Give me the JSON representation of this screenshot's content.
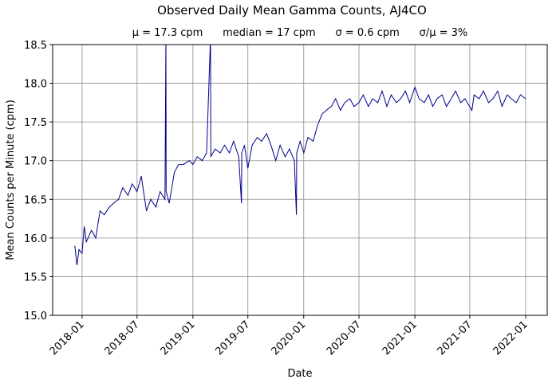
{
  "chart_data": {
    "type": "line",
    "title": "Observed Daily Mean Gamma Counts, AJ4CO",
    "subtitle": "μ = 17.3 cpm      median = 17 cpm      σ = 0.6 cpm      σ/μ = 3%",
    "xlabel": "Date",
    "ylabel": "Mean Counts per Minute (cpm)",
    "xlim": [
      "2017-09-26",
      "2022-03-13"
    ],
    "ylim": [
      15.0,
      18.5
    ],
    "grid": true,
    "line_color": "#00008b",
    "x_ticks": [
      {
        "date": "2018-01-01",
        "label": "2018-01"
      },
      {
        "date": "2018-07-01",
        "label": "2018-07"
      },
      {
        "date": "2019-01-01",
        "label": "2019-01"
      },
      {
        "date": "2019-07-01",
        "label": "2019-07"
      },
      {
        "date": "2020-01-01",
        "label": "2020-01"
      },
      {
        "date": "2020-07-01",
        "label": "2020-07"
      },
      {
        "date": "2021-01-01",
        "label": "2021-01"
      },
      {
        "date": "2021-07-01",
        "label": "2021-07"
      },
      {
        "date": "2022-01-01",
        "label": "2022-01"
      }
    ],
    "y_ticks": [
      {
        "value": 15.0,
        "label": "15.0"
      },
      {
        "value": 15.5,
        "label": "15.5"
      },
      {
        "value": 16.0,
        "label": "16.0"
      },
      {
        "value": 16.5,
        "label": "16.5"
      },
      {
        "value": 17.0,
        "label": "17.0"
      },
      {
        "value": 17.5,
        "label": "17.5"
      },
      {
        "value": 18.0,
        "label": "18.0"
      },
      {
        "value": 18.5,
        "label": "18.5"
      }
    ],
    "series": [
      {
        "points": [
          [
            "2017-12-08",
            15.9
          ],
          [
            "2017-12-15",
            15.65
          ],
          [
            "2017-12-22",
            15.85
          ],
          [
            "2018-01-01",
            15.8
          ],
          [
            "2018-01-08",
            16.15
          ],
          [
            "2018-01-15",
            15.95
          ],
          [
            "2018-02-01",
            16.1
          ],
          [
            "2018-02-15",
            16.0
          ],
          [
            "2018-03-01",
            16.35
          ],
          [
            "2018-03-15",
            16.3
          ],
          [
            "2018-04-01",
            16.4
          ],
          [
            "2018-04-15",
            16.45
          ],
          [
            "2018-05-01",
            16.5
          ],
          [
            "2018-05-15",
            16.65
          ],
          [
            "2018-06-01",
            16.55
          ],
          [
            "2018-06-15",
            16.7
          ],
          [
            "2018-07-01",
            16.6
          ],
          [
            "2018-07-15",
            16.8
          ],
          [
            "2018-08-01",
            16.35
          ],
          [
            "2018-08-15",
            16.5
          ],
          [
            "2018-09-01",
            16.4
          ],
          [
            "2018-09-15",
            16.6
          ],
          [
            "2018-10-01",
            16.5
          ],
          [
            "2018-10-04",
            18.6
          ],
          [
            "2018-10-05",
            16.6
          ],
          [
            "2018-10-15",
            16.45
          ],
          [
            "2018-11-01",
            16.85
          ],
          [
            "2018-11-15",
            16.95
          ],
          [
            "2018-12-01",
            16.95
          ],
          [
            "2018-12-20",
            17.0
          ],
          [
            "2019-01-01",
            16.95
          ],
          [
            "2019-01-15",
            17.05
          ],
          [
            "2019-02-01",
            17.0
          ],
          [
            "2019-02-15",
            17.1
          ],
          [
            "2019-02-28",
            18.6
          ],
          [
            "2019-03-01",
            17.05
          ],
          [
            "2019-03-15",
            17.15
          ],
          [
            "2019-04-01",
            17.1
          ],
          [
            "2019-04-15",
            17.2
          ],
          [
            "2019-05-01",
            17.1
          ],
          [
            "2019-05-15",
            17.25
          ],
          [
            "2019-06-01",
            17.05
          ],
          [
            "2019-06-10",
            16.45
          ],
          [
            "2019-06-11",
            17.1
          ],
          [
            "2019-06-20",
            17.2
          ],
          [
            "2019-07-01",
            16.9
          ],
          [
            "2019-07-15",
            17.2
          ],
          [
            "2019-08-01",
            17.3
          ],
          [
            "2019-08-15",
            17.25
          ],
          [
            "2019-09-01",
            17.35
          ],
          [
            "2019-09-15",
            17.2
          ],
          [
            "2019-10-01",
            17.0
          ],
          [
            "2019-10-15",
            17.2
          ],
          [
            "2019-11-01",
            17.05
          ],
          [
            "2019-11-15",
            17.15
          ],
          [
            "2019-12-01",
            17.0
          ],
          [
            "2019-12-08",
            16.3
          ],
          [
            "2019-12-09",
            17.1
          ],
          [
            "2019-12-20",
            17.25
          ],
          [
            "2020-01-01",
            17.1
          ],
          [
            "2020-01-15",
            17.3
          ],
          [
            "2020-02-01",
            17.25
          ],
          [
            "2020-02-15",
            17.45
          ],
          [
            "2020-03-01",
            17.6
          ],
          [
            "2020-03-15",
            17.65
          ],
          [
            "2020-04-01",
            17.7
          ],
          [
            "2020-04-15",
            17.8
          ],
          [
            "2020-05-01",
            17.65
          ],
          [
            "2020-05-15",
            17.75
          ],
          [
            "2020-06-01",
            17.8
          ],
          [
            "2020-06-15",
            17.7
          ],
          [
            "2020-07-01",
            17.75
          ],
          [
            "2020-07-15",
            17.85
          ],
          [
            "2020-08-01",
            17.7
          ],
          [
            "2020-08-15",
            17.8
          ],
          [
            "2020-09-01",
            17.75
          ],
          [
            "2020-09-15",
            17.9
          ],
          [
            "2020-10-01",
            17.7
          ],
          [
            "2020-10-15",
            17.85
          ],
          [
            "2020-11-01",
            17.75
          ],
          [
            "2020-11-15",
            17.8
          ],
          [
            "2020-12-01",
            17.9
          ],
          [
            "2020-12-15",
            17.75
          ],
          [
            "2021-01-01",
            17.95
          ],
          [
            "2021-01-15",
            17.8
          ],
          [
            "2021-02-01",
            17.75
          ],
          [
            "2021-02-15",
            17.85
          ],
          [
            "2021-03-01",
            17.7
          ],
          [
            "2021-03-15",
            17.8
          ],
          [
            "2021-04-01",
            17.85
          ],
          [
            "2021-04-15",
            17.7
          ],
          [
            "2021-05-01",
            17.8
          ],
          [
            "2021-05-15",
            17.9
          ],
          [
            "2021-06-01",
            17.75
          ],
          [
            "2021-06-15",
            17.8
          ],
          [
            "2021-07-08",
            17.65
          ],
          [
            "2021-07-15",
            17.85
          ],
          [
            "2021-08-01",
            17.8
          ],
          [
            "2021-08-15",
            17.9
          ],
          [
            "2021-09-01",
            17.75
          ],
          [
            "2021-09-15",
            17.8
          ],
          [
            "2021-10-01",
            17.9
          ],
          [
            "2021-10-15",
            17.7
          ],
          [
            "2021-11-01",
            17.85
          ],
          [
            "2021-11-15",
            17.8
          ],
          [
            "2021-12-01",
            17.75
          ],
          [
            "2021-12-15",
            17.85
          ],
          [
            "2022-01-01",
            17.8
          ]
        ]
      }
    ]
  }
}
